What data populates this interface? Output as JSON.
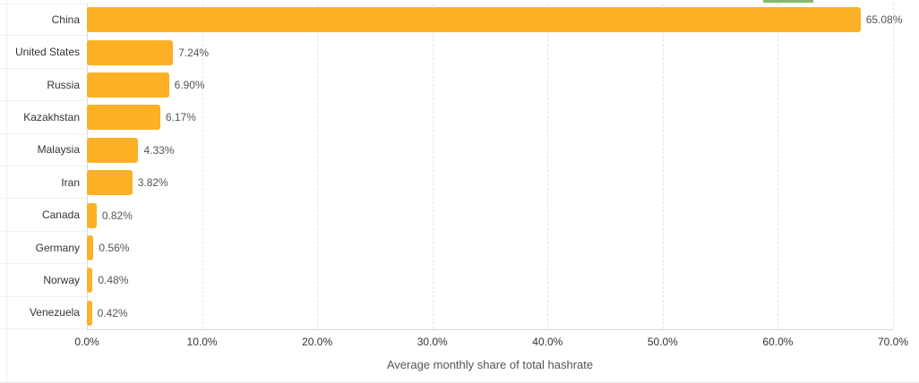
{
  "chart_data": {
    "type": "bar",
    "orientation": "horizontal",
    "title": "",
    "xlabel": "Average monthly share of total hashrate",
    "xlim": [
      0,
      70
    ],
    "grid": "vertical-dashed",
    "legend_position": "cropped-top-right",
    "categories": [
      "China",
      "United States",
      "Russia",
      "Kazakhstan",
      "Malaysia",
      "Iran",
      "Canada",
      "Germany",
      "Norway",
      "Venezuela"
    ],
    "values": [
      65.08,
      7.24,
      6.9,
      6.17,
      4.33,
      3.82,
      0.82,
      0.56,
      0.48,
      0.42
    ],
    "value_labels": [
      "65.08%",
      "7.24%",
      "6.90%",
      "6.17%",
      "4.33%",
      "3.82%",
      "0.82%",
      "0.56%",
      "0.48%",
      "0.42%"
    ],
    "x_tick_values": [
      0,
      10,
      20,
      30,
      40,
      50,
      60,
      70
    ],
    "x_tick_labels": [
      "0.0%",
      "10.0%",
      "20.0%",
      "30.0%",
      "40.0%",
      "50.0%",
      "60.0%",
      "70.0%"
    ]
  },
  "colors": {
    "bar": "#fcb026",
    "legend_fragment": "#7fbe5a",
    "axis": "#d8d8d8",
    "grid": "#e3e3e3"
  }
}
